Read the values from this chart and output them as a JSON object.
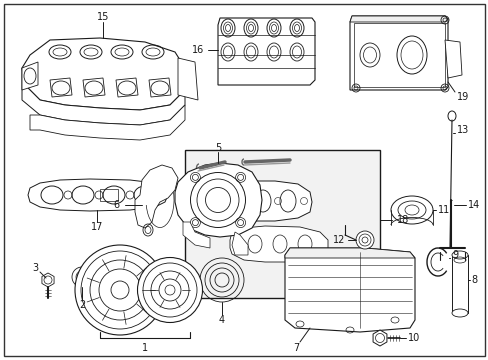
{
  "background_color": "#ffffff",
  "border_color": "#000000",
  "fig_width": 4.89,
  "fig_height": 3.6,
  "dpi": 100,
  "line_color": "#1a1a1a",
  "label_fontsize": 7,
  "gray_fill": "#e8e8e8"
}
